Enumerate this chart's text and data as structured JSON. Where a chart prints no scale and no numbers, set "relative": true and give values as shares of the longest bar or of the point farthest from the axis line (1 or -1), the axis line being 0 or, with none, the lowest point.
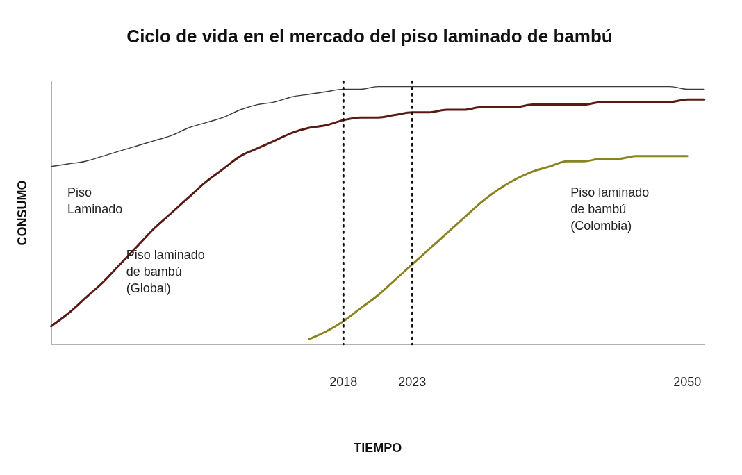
{
  "chart_data": {
    "type": "line",
    "title": "Ciclo de vida en el mercado del piso laminado de bambú",
    "xlabel": "TIEMPO",
    "ylabel": "CONSUMO",
    "relative": true,
    "categories": [
      null,
      null,
      null,
      null,
      null,
      null,
      null,
      null,
      null,
      null,
      null,
      null,
      null,
      null,
      null,
      null,
      null,
      "2018",
      null,
      null,
      null,
      "2023",
      null,
      null,
      null,
      null,
      null,
      null,
      null,
      null,
      null,
      null,
      null,
      null,
      null,
      null,
      null,
      "2050",
      null
    ],
    "series": [
      {
        "name": "Piso Laminado",
        "color": "#3a3a3a",
        "values": [
          0.69,
          0.7,
          0.71,
          0.73,
          0.75,
          0.77,
          0.79,
          0.81,
          0.84,
          0.86,
          0.88,
          0.91,
          0.93,
          0.94,
          0.96,
          0.97,
          0.98,
          0.99,
          0.99,
          1.0,
          1.0,
          1.0,
          1.0,
          1.0,
          1.0,
          1.0,
          1.0,
          1.0,
          1.0,
          1.0,
          1.0,
          1.0,
          1.0,
          1.0,
          1.0,
          1.0,
          1.0,
          0.99,
          0.99
        ]
      },
      {
        "name": "Piso laminado de bambú (Global)",
        "color": "#5a1a14",
        "values": [
          0.07,
          0.12,
          0.18,
          0.24,
          0.31,
          0.38,
          0.45,
          0.51,
          0.57,
          0.63,
          0.68,
          0.73,
          0.76,
          0.79,
          0.82,
          0.84,
          0.85,
          0.87,
          0.88,
          0.88,
          0.89,
          0.9,
          0.9,
          0.91,
          0.91,
          0.92,
          0.92,
          0.92,
          0.93,
          0.93,
          0.93,
          0.93,
          0.94,
          0.94,
          0.94,
          0.94,
          0.94,
          0.95,
          0.95
        ]
      },
      {
        "name": "Piso laminado de bambú (Colombia)",
        "color": "#8a8420",
        "values": [
          null,
          null,
          null,
          null,
          null,
          null,
          null,
          null,
          null,
          null,
          null,
          null,
          null,
          null,
          null,
          0.02,
          0.05,
          0.09,
          0.14,
          0.19,
          0.25,
          0.31,
          0.37,
          0.43,
          0.49,
          0.55,
          0.6,
          0.64,
          0.67,
          0.69,
          0.71,
          0.71,
          0.72,
          0.72,
          0.73,
          0.73,
          0.73,
          0.73,
          null
        ]
      }
    ],
    "ref_lines": [
      {
        "axis": "x",
        "value": "2018",
        "color": "#111111",
        "line_style": "dotted"
      },
      {
        "axis": "x",
        "value": "2023",
        "color": "#111111",
        "line_style": "dotted"
      }
    ],
    "grid": false,
    "legend": false,
    "marker": "none",
    "line_style": "solid"
  }
}
